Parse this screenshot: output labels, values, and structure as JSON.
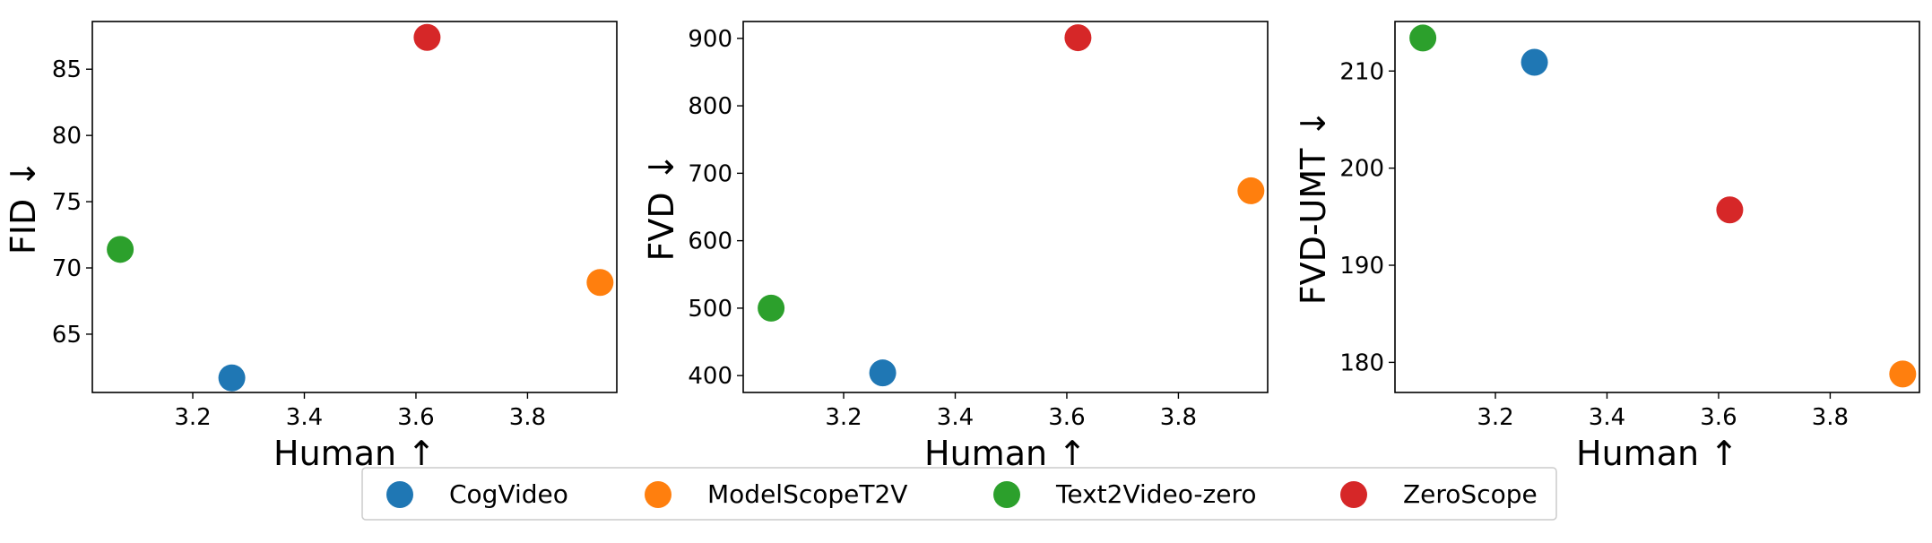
{
  "models": [
    {
      "name": "CogVideo",
      "color": "#1f77b4"
    },
    {
      "name": "ModelScopeT2V",
      "color": "#ff7f0e"
    },
    {
      "name": "Text2Video-zero",
      "color": "#2ca02c"
    },
    {
      "name": "ZeroScope",
      "color": "#d62728"
    }
  ],
  "chart_data": [
    {
      "type": "scatter",
      "xlabel": "Human ↑",
      "ylabel": "FID ↓",
      "xlim": [
        3.02,
        3.96
      ],
      "ylim": [
        60.6,
        88.6
      ],
      "xticks": [
        3.2,
        3.4,
        3.6,
        3.8
      ],
      "yticks": [
        65,
        70,
        75,
        80,
        85
      ],
      "grid": false,
      "points": [
        {
          "series": "CogVideo",
          "x": 3.27,
          "y": 61.7
        },
        {
          "series": "ModelScopeT2V",
          "x": 3.93,
          "y": 68.9
        },
        {
          "series": "Text2Video-zero",
          "x": 3.07,
          "y": 71.4
        },
        {
          "series": "ZeroScope",
          "x": 3.62,
          "y": 87.4
        }
      ]
    },
    {
      "type": "scatter",
      "xlabel": "Human ↑",
      "ylabel": "FVD ↓",
      "xlim": [
        3.02,
        3.96
      ],
      "ylim": [
        375,
        925
      ],
      "xticks": [
        3.2,
        3.4,
        3.6,
        3.8
      ],
      "yticks": [
        400,
        500,
        600,
        700,
        800,
        900
      ],
      "grid": false,
      "points": [
        {
          "series": "CogVideo",
          "x": 3.27,
          "y": 404
        },
        {
          "series": "ModelScopeT2V",
          "x": 3.93,
          "y": 674
        },
        {
          "series": "Text2Video-zero",
          "x": 3.07,
          "y": 500
        },
        {
          "series": "ZeroScope",
          "x": 3.62,
          "y": 901
        }
      ]
    },
    {
      "type": "scatter",
      "xlabel": "Human ↑",
      "ylabel": "FVD-UMT ↓",
      "xlim": [
        3.02,
        3.96
      ],
      "ylim": [
        176.9,
        215.1
      ],
      "xticks": [
        3.2,
        3.4,
        3.6,
        3.8
      ],
      "yticks": [
        180,
        190,
        200,
        210
      ],
      "grid": false,
      "points": [
        {
          "series": "CogVideo",
          "x": 3.27,
          "y": 210.9
        },
        {
          "series": "ModelScopeT2V",
          "x": 3.93,
          "y": 178.8
        },
        {
          "series": "Text2Video-zero",
          "x": 3.07,
          "y": 213.4
        },
        {
          "series": "ZeroScope",
          "x": 3.62,
          "y": 195.7
        }
      ]
    }
  ],
  "legend": {
    "position": "bottom-center",
    "entries": [
      "CogVideo",
      "ModelScopeT2V",
      "Text2Video-zero",
      "ZeroScope"
    ]
  }
}
